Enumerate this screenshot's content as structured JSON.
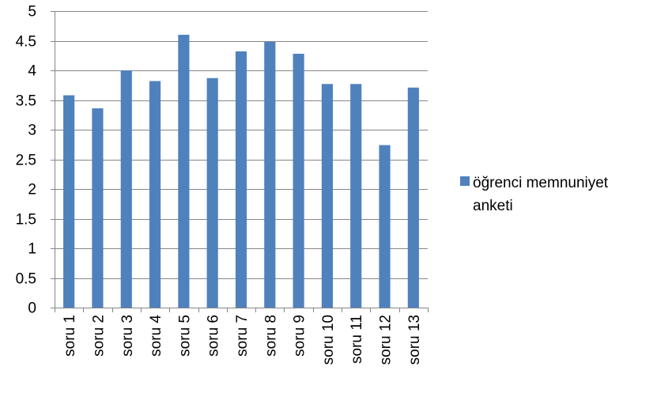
{
  "chart_data": {
    "type": "bar",
    "title": "",
    "xlabel": "",
    "ylabel": "",
    "categories": [
      "soru 1",
      "soru 2",
      "soru 3",
      "soru 4",
      "soru 5",
      "soru 6",
      "soru 7",
      "soru 8",
      "soru 9",
      "soru 10",
      "soru 11",
      "soru 12",
      "soru 13"
    ],
    "series": [
      {
        "name": "öğrenci memnuniyet anketi",
        "color": "#4F81BD",
        "values": [
          3.58,
          3.36,
          4.0,
          3.82,
          4.6,
          3.87,
          4.32,
          4.48,
          4.28,
          3.77,
          3.77,
          2.74,
          3.71
        ]
      }
    ],
    "ylim": [
      0,
      5
    ],
    "yticks": [
      "0",
      "0.5",
      "1",
      "1.5",
      "2",
      "2.5",
      "3",
      "3.5",
      "4",
      "4.5",
      "5"
    ],
    "ytick_values": [
      0,
      0.5,
      1,
      1.5,
      2,
      2.5,
      3,
      3.5,
      4,
      4.5,
      5
    ],
    "grid": true,
    "gridline_color": "#868686",
    "legend_position": "right"
  }
}
